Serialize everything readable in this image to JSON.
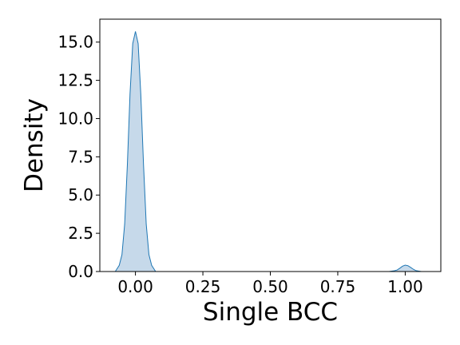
{
  "chart_data": {
    "type": "area",
    "title": "",
    "xlabel": "Single BCC",
    "ylabel": "Density",
    "xlim": [
      -0.132,
      1.132
    ],
    "ylim": [
      0,
      16.5
    ],
    "xticks": [
      0.0,
      0.25,
      0.5,
      0.75,
      1.0
    ],
    "xtick_labels": [
      "0.00",
      "0.25",
      "0.50",
      "0.75",
      "1.00"
    ],
    "yticks": [
      0,
      2.5,
      5,
      7.5,
      10,
      12.5,
      15
    ],
    "ytick_labels": [
      "0.0",
      "2.5",
      "5.0",
      "7.5",
      "10.0",
      "12.5",
      "15.0"
    ],
    "grid": false,
    "series": [
      {
        "color": "#1f77b4",
        "fill": "#c6d9ea",
        "x": [
          -0.075,
          -0.06,
          -0.05,
          -0.04,
          -0.03,
          -0.02,
          -0.01,
          0.0,
          0.01,
          0.02,
          0.03,
          0.04,
          0.05,
          0.06,
          0.075,
          0.2,
          0.5,
          0.8,
          0.94,
          0.96,
          0.97,
          0.98,
          0.99,
          1.0,
          1.01,
          1.02,
          1.03,
          1.04,
          1.06
        ],
        "y": [
          0.0,
          0.4,
          1.1,
          3.1,
          7.0,
          11.6,
          14.9,
          15.7,
          14.9,
          11.6,
          7.0,
          3.1,
          1.1,
          0.4,
          0.0,
          0.0,
          0.0,
          0.0,
          0.0,
          0.05,
          0.1,
          0.22,
          0.35,
          0.42,
          0.38,
          0.27,
          0.15,
          0.06,
          0.0
        ]
      }
    ]
  }
}
